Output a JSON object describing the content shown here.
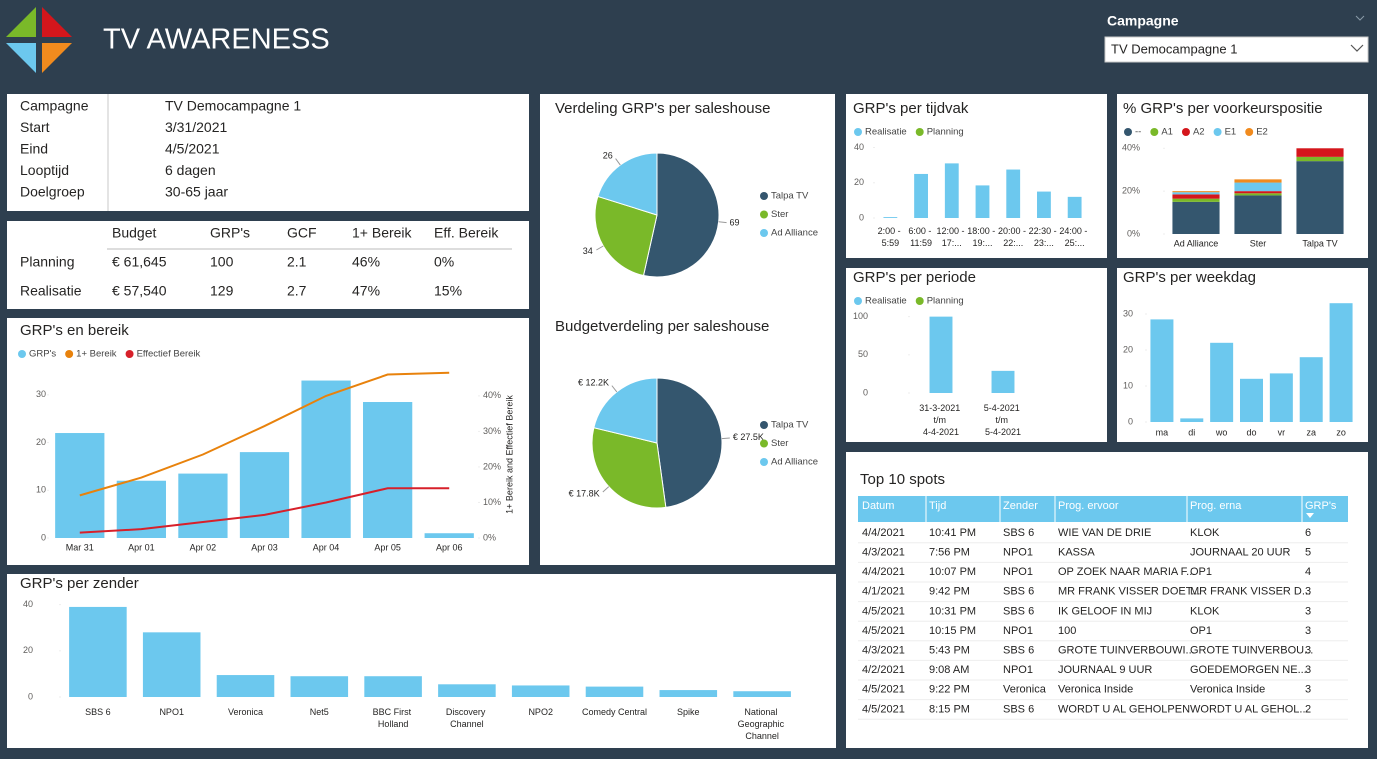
{
  "header": {
    "title": "TV AWARENESS",
    "filter_label": "Campagne",
    "filter_value": "TV Democampagne 1"
  },
  "info": {
    "labels": [
      "Campagne",
      "Start",
      "Eind",
      "Looptijd",
      "Doelgroep"
    ],
    "values": [
      "TV Democampagne 1",
      "3/31/2021",
      "4/5/2021",
      "6 dagen",
      "30-65 jaar"
    ]
  },
  "kpi": {
    "columns": [
      "Budget",
      "GRP's",
      "GCF",
      "1+ Bereik",
      "Eff. Bereik"
    ],
    "rows": [
      {
        "label": "Planning",
        "values": [
          "€ 61,645",
          "100",
          "2.1",
          "46%",
          "0%"
        ]
      },
      {
        "label": "Realisatie",
        "values": [
          "€ 57,540",
          "129",
          "2.7",
          "47%",
          "15%"
        ]
      }
    ]
  },
  "chart_data": [
    {
      "type": "combo",
      "title": "GRP's en bereik",
      "categories": [
        "Mar 31",
        "Apr 01",
        "Apr 02",
        "Apr 03",
        "Apr 04",
        "Apr 05",
        "Apr 06"
      ],
      "series": [
        {
          "name": "GRP's",
          "type": "bar",
          "color": "#6cc8ee",
          "values": [
            22,
            12,
            13.5,
            18,
            33,
            28.5,
            1
          ]
        },
        {
          "name": "1+ Bereik",
          "type": "line",
          "axis": "y2",
          "color": "#e8820c",
          "values": [
            12,
            17,
            23.5,
            31.5,
            40,
            46,
            46.5
          ]
        },
        {
          "name": "Effectief Bereik",
          "type": "line",
          "axis": "y2",
          "color": "#d7202a",
          "values": [
            1.5,
            2.5,
            4.5,
            6.5,
            10,
            14,
            14
          ]
        }
      ],
      "ylim": [
        0,
        35
      ],
      "yticks": [
        0,
        10,
        20,
        30
      ],
      "y2lim": [
        0,
        47
      ],
      "y2ticks": [
        {
          "value": 0,
          "label": "0%"
        },
        {
          "value": 10,
          "label": "10%"
        },
        {
          "value": 20,
          "label": "20%"
        },
        {
          "value": 30,
          "label": "30%"
        },
        {
          "value": 40,
          "label": "40%"
        }
      ],
      "y2label": "1+ Bereik and Effectief Bereik",
      "legend": "top-left"
    },
    {
      "type": "pie",
      "title": "Verdeling GRP's per saleshouse",
      "categories": [
        "Talpa TV",
        "Ster",
        "Ad Alliance"
      ],
      "values": [
        69,
        34,
        26
      ],
      "colors": [
        "#34566e",
        "#7ab929",
        "#6cc8ee"
      ],
      "legend": "right"
    },
    {
      "type": "pie",
      "title": "Budgetverdeling per saleshouse",
      "categories": [
        "Talpa TV",
        "Ster",
        "Ad Alliance"
      ],
      "values": [
        27500,
        17800,
        12200
      ],
      "value_labels": [
        "€ 27.5K",
        "€ 17.8K",
        "€ 12.2K"
      ],
      "colors": [
        "#34566e",
        "#7ab929",
        "#6cc8ee"
      ],
      "legend": "right"
    },
    {
      "type": "bar",
      "title": "GRP's per tijdvak",
      "categories": [
        "2:00 - 5:59",
        "6:00 - 11:59",
        "12:00 - 17:...",
        "18:00 - 19:...",
        "20:00 - 22:...",
        "22:30 - 23:...",
        "24:00 - 25:..."
      ],
      "series": [
        {
          "name": "Realisatie",
          "color": "#6cc8ee",
          "values": [
            0.5,
            25,
            31,
            18.5,
            27.5,
            15,
            12
          ]
        },
        {
          "name": "Planning",
          "color": "#7ab929",
          "values": [
            null,
            null,
            null,
            null,
            null,
            null,
            null
          ]
        }
      ],
      "ylim": [
        0,
        42
      ],
      "yticks": [
        0,
        20,
        40
      ],
      "legend": "top-left"
    },
    {
      "type": "stacked_bar",
      "title": "% GRP's per voorkeurspositie",
      "categories": [
        "Ad Alliance",
        "Ster",
        "Talpa TV"
      ],
      "series": [
        {
          "name": "--",
          "color": "#34566e",
          "values": [
            15,
            18,
            34
          ]
        },
        {
          "name": "A1",
          "color": "#7ab929",
          "values": [
            1.5,
            1,
            2
          ]
        },
        {
          "name": "A2",
          "color": "#d4161c",
          "values": [
            2,
            1,
            4
          ]
        },
        {
          "name": "E1",
          "color": "#6cc8ee",
          "values": [
            1,
            4,
            0
          ]
        },
        {
          "name": "E2",
          "color": "#f18b1e",
          "values": [
            0.5,
            1.5,
            0
          ]
        }
      ],
      "ylim": [
        0,
        42
      ],
      "yticks": [
        {
          "value": 0,
          "label": "0%"
        },
        {
          "value": 20,
          "label": "20%"
        },
        {
          "value": 40,
          "label": "40%"
        }
      ],
      "legend": "top-left"
    },
    {
      "type": "bar",
      "title": "GRP's per periode",
      "categories": [
        "31-3-2021 t/m 4-4-2021",
        "5-4-2021 t/m 5-4-2021"
      ],
      "series": [
        {
          "name": "Realisatie",
          "color": "#6cc8ee",
          "values": [
            100,
            29
          ]
        },
        {
          "name": "Planning",
          "color": "#7ab929",
          "values": [
            null,
            null
          ]
        }
      ],
      "ylim": [
        0,
        110
      ],
      "yticks": [
        0,
        50,
        100
      ],
      "legend": "top-left"
    },
    {
      "type": "bar",
      "title": "GRP's per weekdag",
      "categories": [
        "ma",
        "di",
        "wo",
        "do",
        "vr",
        "za",
        "zo"
      ],
      "values": [
        28.5,
        1,
        22,
        12,
        13.5,
        18,
        33
      ],
      "color": "#6cc8ee",
      "ylim": [
        0,
        35
      ],
      "yticks": [
        0,
        10,
        20,
        30
      ]
    },
    {
      "type": "bar",
      "title": "GRP's per zender",
      "categories": [
        "SBS 6",
        "NPO1",
        "Veronica",
        "Net5",
        "BBC First Holland",
        "Discovery Channel",
        "NPO2",
        "Comedy Central",
        "Spike",
        "National Geographic Channel"
      ],
      "values": [
        39,
        28,
        9.5,
        9,
        9,
        5.5,
        5,
        4.5,
        3,
        2.5
      ],
      "color": "#6cc8ee",
      "ylim": [
        0,
        42
      ],
      "yticks": [
        0,
        20,
        40
      ]
    }
  ],
  "top_spots": {
    "title": "Top 10 spots",
    "columns": [
      "Datum",
      "Tijd",
      "Zender",
      "Prog. ervoor",
      "Prog. erna",
      "GRP's"
    ],
    "rows": [
      [
        "4/4/2021",
        "10:41 PM",
        "SBS 6",
        "WIE VAN DE DRIE",
        "KLOK",
        6
      ],
      [
        "4/3/2021",
        "7:56 PM",
        "NPO1",
        "KASSA",
        "JOURNAAL 20 UUR",
        5
      ],
      [
        "4/4/2021",
        "10:07 PM",
        "NPO1",
        "OP ZOEK NAAR MARIA F...",
        "OP1",
        4
      ],
      [
        "4/1/2021",
        "9:42 PM",
        "SBS 6",
        "MR FRANK VISSER DOET...",
        "MR FRANK VISSER D...",
        3
      ],
      [
        "4/5/2021",
        "10:31 PM",
        "SBS 6",
        "IK GELOOF IN MIJ",
        "KLOK",
        3
      ],
      [
        "4/5/2021",
        "10:15 PM",
        "NPO1",
        "100",
        "OP1",
        3
      ],
      [
        "4/3/2021",
        "5:43 PM",
        "SBS 6",
        "GROTE TUINVERBOUWI...",
        "GROTE TUINVERBOU...",
        3
      ],
      [
        "4/2/2021",
        "9:08 AM",
        "NPO1",
        "JOURNAAL 9 UUR",
        "GOEDEMORGEN NE...",
        3
      ],
      [
        "4/5/2021",
        "9:22 PM",
        "Veronica",
        "Veronica Inside",
        "Veronica Inside",
        3
      ],
      [
        "4/5/2021",
        "8:15 PM",
        "SBS 6",
        "WORDT U AL GEHOLPEN",
        "WORDT U AL GEHOL...",
        2
      ]
    ]
  }
}
